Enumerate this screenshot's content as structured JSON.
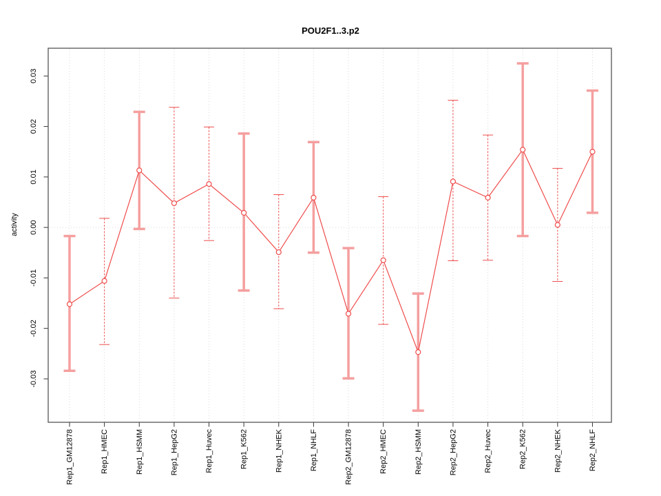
{
  "title": "POU2F1..3.p2",
  "chart_data": {
    "type": "line",
    "title": "POU2F1..3.p2",
    "xlabel": "",
    "ylabel": "activity",
    "legend_position": "none",
    "marker": "open-circle",
    "grid": "vertical dotted gridline at each category plus dotted horizontal line at y=0",
    "categories": [
      "Rep1_GM12878",
      "Rep1_HMEC",
      "Rep1_HSMM",
      "Rep1_HepG2",
      "Rep1_Huvec",
      "Rep1_K562",
      "Rep1_NHEK",
      "Rep1_NHLF",
      "Rep2_GM12878",
      "Rep2_HMEC",
      "Rep2_HSMM",
      "Rep2_HepG2",
      "Rep2_Huvec",
      "Rep2_K562",
      "Rep2_NHEK",
      "Rep2_NHLF"
    ],
    "series": [
      {
        "name": "activity",
        "values": [
          -0.0152,
          -0.0106,
          0.0113,
          0.0048,
          0.0086,
          0.0029,
          -0.0049,
          0.0059,
          -0.0171,
          -0.0065,
          -0.0247,
          0.0091,
          0.0059,
          0.0154,
          0.0005,
          0.015
        ]
      }
    ],
    "error_bars": {
      "low": [
        -0.0284,
        -0.0232,
        -0.0003,
        -0.014,
        -0.0026,
        -0.0125,
        -0.0161,
        -0.005,
        -0.0299,
        -0.0192,
        -0.0363,
        -0.0066,
        -0.0065,
        -0.0017,
        -0.0107,
        0.0029
      ],
      "high": [
        -0.0017,
        0.0018,
        0.0229,
        0.0238,
        0.0199,
        0.0186,
        0.0065,
        0.0169,
        -0.0041,
        0.0061,
        -0.0131,
        0.0252,
        0.0183,
        0.0325,
        0.0117,
        0.0271
      ],
      "style": [
        "thick",
        "thin",
        "thick",
        "thin",
        "thin",
        "thick",
        "thin",
        "thick",
        "thick",
        "thin",
        "thick",
        "thin",
        "thin",
        "thick",
        "thin",
        "thick"
      ]
    },
    "y_ticks": [
      -0.03,
      -0.02,
      -0.01,
      0.0,
      0.01,
      0.02,
      0.03
    ],
    "ylim": [
      -0.0386,
      0.0355
    ],
    "zero_line": 0.0
  },
  "colors": {
    "line": "#ef4b4b",
    "marker": "#ef4b4b",
    "error_bar_thick": "#f59f9f",
    "error_bar_thin": "#ef4b4b",
    "gridline": "#d9d9d9",
    "zero_line": "#d9d9d9",
    "axis_box": "#555555",
    "tick": "#333333",
    "text": "#000000",
    "background": "#ffffff"
  }
}
